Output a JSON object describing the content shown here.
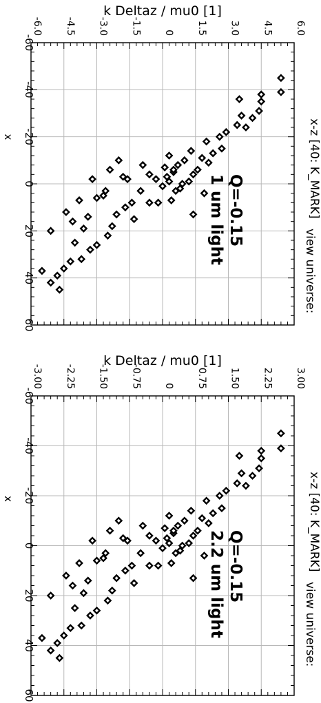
{
  "chart_data": [
    {
      "type": "scatter",
      "title": "",
      "ylabel": "k Deltaz / mu0 [1]",
      "xlabel": "x",
      "xlim": [
        -60,
        60
      ],
      "ylim": [
        -6.0,
        6.0
      ],
      "x_ticks": [
        "-60",
        "-40",
        "-20",
        "0",
        "20",
        "40",
        "60"
      ],
      "y_ticks": [
        "-6.0",
        "-4.5",
        "-3.0",
        "-1.5",
        "0",
        "1.5",
        "3.0",
        "4.5",
        "6.0"
      ],
      "grid": true,
      "annotation": [
        "Q=-0.15",
        "1 um light"
      ],
      "side_label": "x-z [40: K_MARK]",
      "side_label_extra": "view universe:",
      "series": [
        {
          "marker": "diamond",
          "x": [
            -45,
            -39,
            -38,
            -35,
            -31,
            -29,
            -24,
            -28,
            -36,
            -25,
            -22,
            -15,
            -20,
            -13,
            -9,
            -11,
            -6,
            -18,
            -14,
            -4,
            -10,
            -8,
            0,
            -5,
            3,
            -12,
            -1,
            -7,
            1,
            -2,
            8,
            -4,
            -8,
            3,
            8,
            -3,
            -6,
            5,
            -10,
            13,
            -2,
            -2,
            8,
            15,
            3,
            10,
            6,
            18,
            7,
            22,
            14,
            26,
            16,
            19,
            12,
            25,
            28,
            20,
            32,
            36,
            33,
            39,
            42,
            45,
            37,
            13,
            4,
            -1,
            -6,
            2,
            -3,
            7
          ],
          "y": [
            5.4,
            5.4,
            4.5,
            4.5,
            4.4,
            3.6,
            3.8,
            4.1,
            3.5,
            3.4,
            2.9,
            2.7,
            2.6,
            2.3,
            2.1,
            1.8,
            1.6,
            2.0,
            1.3,
            1.4,
            1.0,
            0.7,
            0.9,
            0.5,
            0.6,
            0.3,
            0.3,
            0.1,
            0.0,
            -0.3,
            -0.2,
            -0.6,
            -0.9,
            -1.0,
            -1.4,
            -1.8,
            -2.4,
            -2.7,
            -2.0,
            -2.1,
            -3.2,
            -1.6,
            -0.6,
            -1.3,
            -2.6,
            -1.7,
            -3.0,
            -2.3,
            -3.8,
            -2.5,
            -3.4,
            -3.0,
            -4.1,
            -3.6,
            -4.4,
            -4.0,
            -3.3,
            -5.1,
            -3.7,
            -4.5,
            -4.2,
            -4.8,
            -5.1,
            -4.7,
            -5.5,
            1.4,
            1.9,
            1.2,
            0.5,
            0.8,
            0.2,
            0.4
          ]
        }
      ]
    },
    {
      "type": "scatter",
      "title": "",
      "ylabel": "k Deltaz / mu0 [1]",
      "xlabel": "x",
      "xlim": [
        -60,
        60
      ],
      "ylim": [
        -3.0,
        3.0
      ],
      "x_ticks": [
        "-60",
        "-40",
        "-20",
        "0",
        "20",
        "40",
        "60"
      ],
      "y_ticks": [
        "-3.00",
        "-2.25",
        "-1.50",
        "-0.75",
        "0",
        "0.75",
        "1.50",
        "2.25",
        "3.00"
      ],
      "grid": true,
      "annotation": [
        "Q=-0.15",
        "2.2 um light"
      ],
      "side_label": "x-z [40: K_MARK]",
      "side_label_extra": "view universe:",
      "series": [
        {
          "marker": "diamond",
          "x": [
            -45,
            -39,
            -38,
            -35,
            -31,
            -29,
            -24,
            -28,
            -36,
            -25,
            -22,
            -15,
            -20,
            -13,
            -9,
            -11,
            -6,
            -18,
            -14,
            -4,
            -10,
            -8,
            0,
            -5,
            3,
            -12,
            -1,
            -7,
            1,
            -2,
            8,
            -4,
            -8,
            3,
            8,
            -3,
            -6,
            5,
            -10,
            13,
            -2,
            -2,
            8,
            15,
            3,
            10,
            6,
            18,
            7,
            22,
            14,
            26,
            16,
            19,
            12,
            25,
            28,
            20,
            32,
            36,
            33,
            39,
            42,
            45,
            37,
            13,
            4,
            -1,
            -6,
            2,
            -3,
            7
          ],
          "y": [
            2.7,
            2.7,
            2.25,
            2.25,
            2.2,
            1.8,
            1.9,
            2.05,
            1.75,
            1.7,
            1.45,
            1.35,
            1.3,
            1.15,
            1.05,
            0.9,
            0.8,
            1.0,
            0.65,
            0.7,
            0.5,
            0.35,
            0.45,
            0.25,
            0.3,
            0.15,
            0.15,
            0.05,
            0.0,
            -0.15,
            -0.1,
            -0.3,
            -0.45,
            -0.5,
            -0.7,
            -0.9,
            -1.2,
            -1.35,
            -1.0,
            -1.05,
            -1.6,
            -0.8,
            -0.3,
            -0.65,
            -1.3,
            -0.85,
            -1.5,
            -1.15,
            -1.9,
            -1.25,
            -1.7,
            -1.5,
            -2.05,
            -1.8,
            -2.2,
            -2.0,
            -1.65,
            -2.55,
            -1.85,
            -2.25,
            -2.1,
            -2.4,
            -2.55,
            -2.35,
            -2.75,
            0.7,
            0.95,
            0.6,
            0.25,
            0.4,
            0.1,
            0.2
          ]
        }
      ]
    }
  ]
}
